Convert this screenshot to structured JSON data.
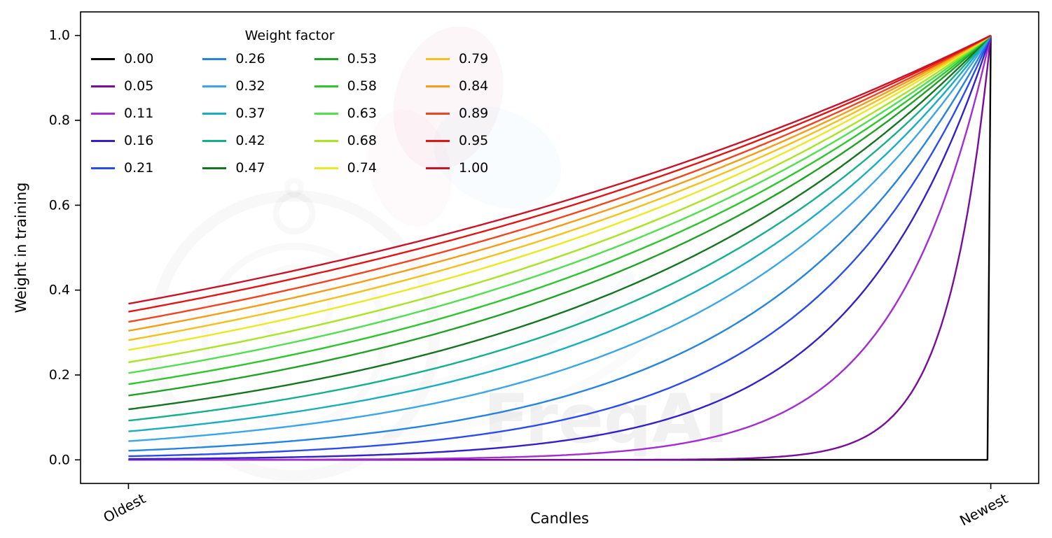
{
  "figure": {
    "background": "#ffffff",
    "watermark_text": "FreqAI"
  },
  "chart_data": {
    "type": "line",
    "title": "",
    "xlabel": "Candles",
    "ylabel": "Weight in training",
    "x_tick_labels": [
      "Oldest",
      "Newest"
    ],
    "y_tick_labels": [
      "0.0",
      "0.2",
      "0.4",
      "0.6",
      "0.8",
      "1.0"
    ],
    "ylim": [
      -0.05,
      1.05
    ],
    "xlim": [
      -0.05,
      1.05
    ],
    "grid": false,
    "legend": {
      "title": "Weight factor",
      "position": "upper-left",
      "columns": 4,
      "rows": 5,
      "fill_order": "column-major"
    },
    "formula": "weight(x) = exp(-(1 - x) / factor), x normalized 0 (Oldest) to 1 (Newest); all curves converge to weight 1 at Newest",
    "series": [
      {
        "label": "0.00",
        "factor": 0.0,
        "color": "#000000"
      },
      {
        "label": "0.05",
        "factor": 0.05,
        "color": "#7b0b9b"
      },
      {
        "label": "0.11",
        "factor": 0.11,
        "color": "#a32cd4"
      },
      {
        "label": "0.16",
        "factor": 0.16,
        "color": "#3420c8"
      },
      {
        "label": "0.21",
        "factor": 0.21,
        "color": "#2a4bf0"
      },
      {
        "label": "0.26",
        "factor": 0.26,
        "color": "#2484e0"
      },
      {
        "label": "0.32",
        "factor": 0.32,
        "color": "#3aa5e8"
      },
      {
        "label": "0.37",
        "factor": 0.37,
        "color": "#17afc0"
      },
      {
        "label": "0.42",
        "factor": 0.42,
        "color": "#14b08a"
      },
      {
        "label": "0.47",
        "factor": 0.47,
        "color": "#13751f"
      },
      {
        "label": "0.53",
        "factor": 0.53,
        "color": "#1fa224"
      },
      {
        "label": "0.58",
        "factor": 0.58,
        "color": "#2bc72b"
      },
      {
        "label": "0.63",
        "factor": 0.63,
        "color": "#50e04e"
      },
      {
        "label": "0.68",
        "factor": 0.68,
        "color": "#a9e422"
      },
      {
        "label": "0.74",
        "factor": 0.74,
        "color": "#ece824"
      },
      {
        "label": "0.79",
        "factor": 0.79,
        "color": "#f4c019"
      },
      {
        "label": "0.84",
        "factor": 0.84,
        "color": "#f59d17"
      },
      {
        "label": "0.89",
        "factor": 0.89,
        "color": "#f1431d"
      },
      {
        "label": "0.95",
        "factor": 0.95,
        "color": "#e21515"
      },
      {
        "label": "1.00",
        "factor": 1.0,
        "color": "#c91328"
      }
    ]
  }
}
